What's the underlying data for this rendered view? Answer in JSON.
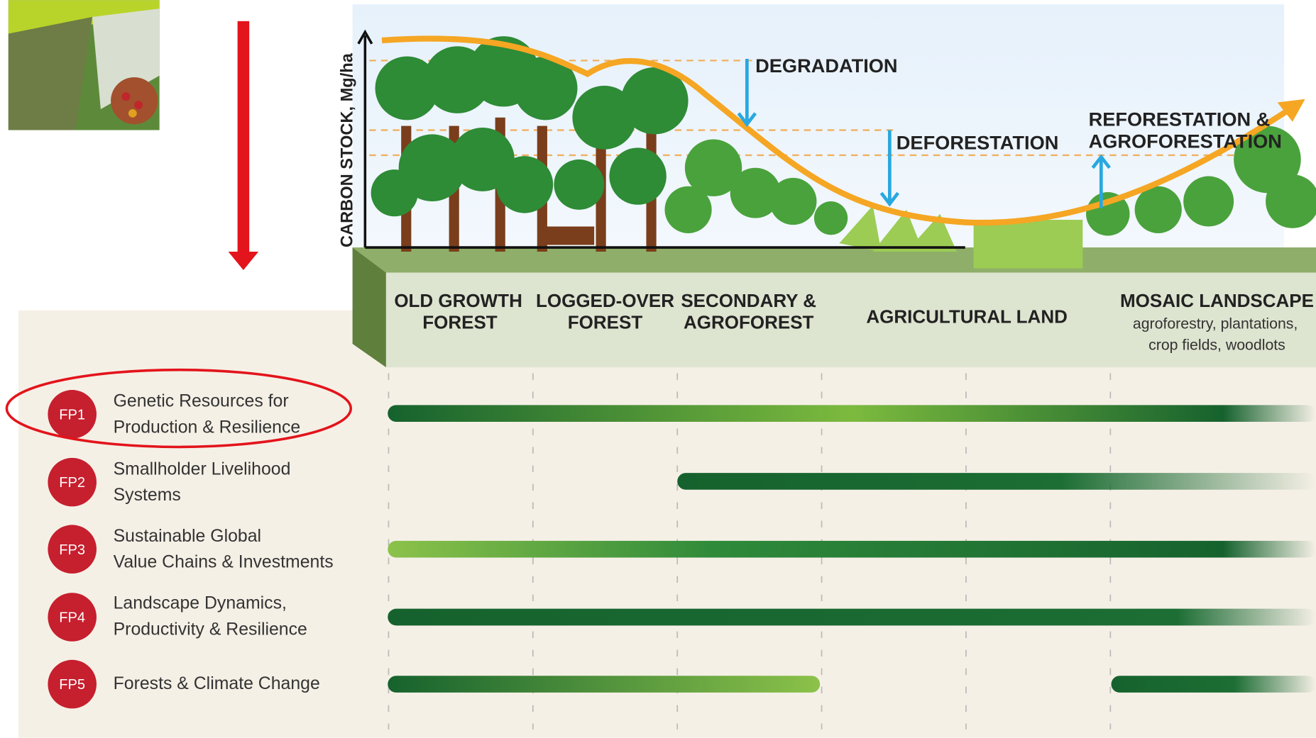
{
  "axis_label": "CARBON STOCK, Mg/ha",
  "transitions": [
    {
      "lines": [
        "DEGRADATION"
      ]
    },
    {
      "lines": [
        "DEFORESTATION"
      ]
    },
    {
      "lines": [
        "REFORESTATION &",
        "AGROFORESTATION"
      ]
    }
  ],
  "stages": [
    {
      "lines": [
        "OLD GROWTH",
        "FOREST"
      ]
    },
    {
      "lines": [
        "LOGGED-OVER",
        "FOREST"
      ]
    },
    {
      "lines": [
        "SECONDARY &",
        "AGROFOREST"
      ]
    },
    {
      "lines": [
        "AGRICULTURAL LAND"
      ]
    },
    {
      "lines": [
        "MOSAIC LANDSCAPE"
      ],
      "subtitle": [
        "agroforestry, plantations,",
        "crop fields, woodlots"
      ]
    }
  ],
  "programs": [
    {
      "code": "FP1",
      "lines": [
        "Genetic Resources for",
        "Production & Resilience"
      ]
    },
    {
      "code": "FP2",
      "lines": [
        "Smallholder Livelihood",
        "Systems"
      ]
    },
    {
      "code": "FP3",
      "lines": [
        "Sustainable Global",
        "Value Chains & Investments"
      ]
    },
    {
      "code": "FP4",
      "lines": [
        "Landscape Dynamics,",
        "Productivity & Resilience"
      ]
    },
    {
      "code": "FP5",
      "lines": [
        "Forests & Climate Change"
      ]
    }
  ]
}
